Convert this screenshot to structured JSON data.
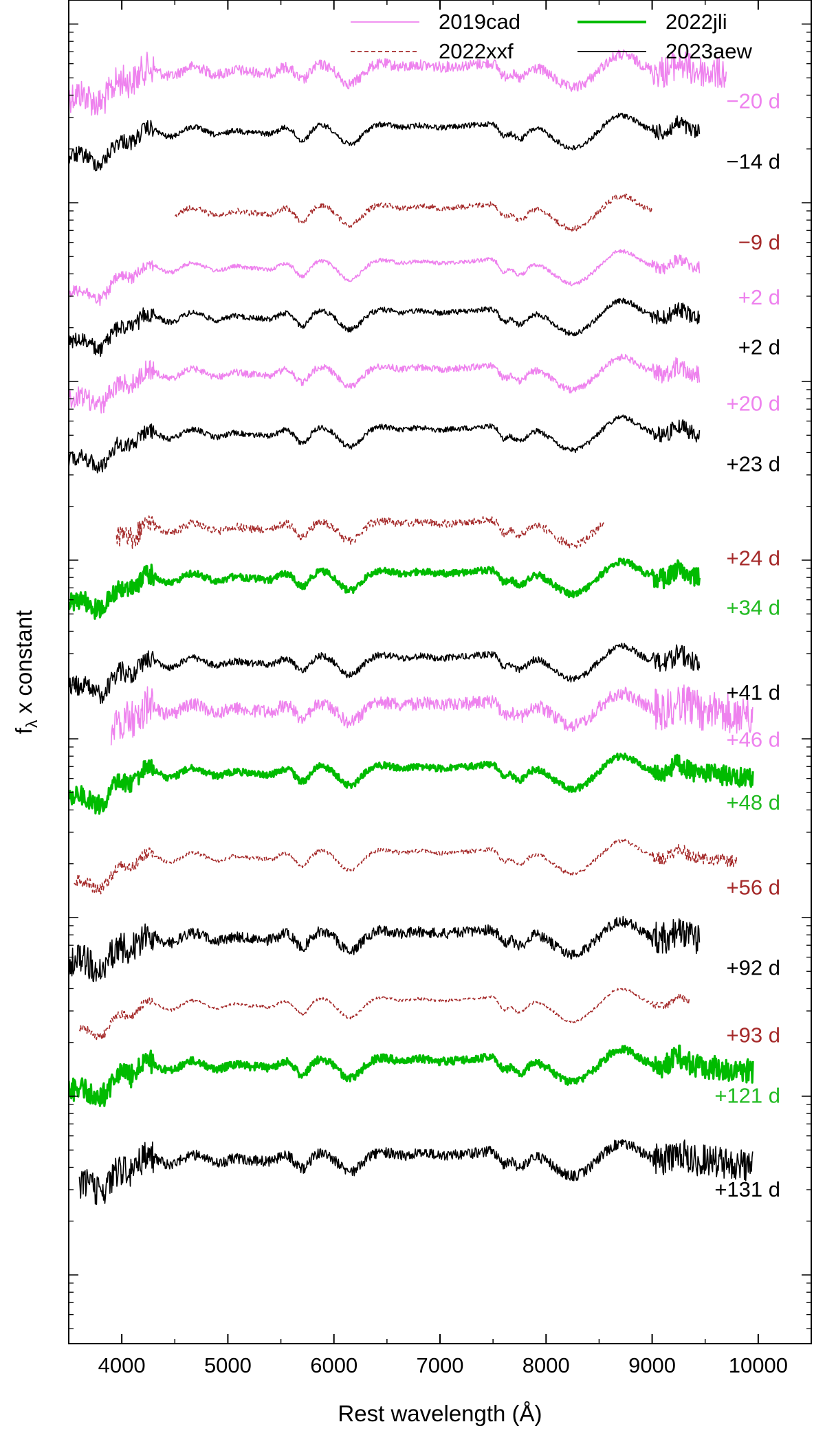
{
  "chart_data": {
    "type": "line",
    "title": "",
    "xlabel": "Rest wavelength (Å)",
    "ylabel_main": "f",
    "ylabel_sub": "λ",
    "ylabel_rest": " x constant",
    "xlim": [
      3500,
      10500
    ],
    "x_ticks": [
      4000,
      5000,
      6000,
      7000,
      8000,
      9000,
      10000
    ],
    "x_tick_labels": [
      "4000",
      "5000",
      "6000",
      "7000",
      "8000",
      "9000",
      "10000"
    ],
    "y_scale": "log (offset for clarity)",
    "legend_position": "top-right",
    "legend": [
      {
        "name": "2019cad",
        "color": "#ee82ee",
        "style": "solid"
      },
      {
        "name": "2022jli",
        "color": "#00bb00",
        "style": "solid-thick"
      },
      {
        "name": "2022xxf",
        "color": "#a52a2a",
        "style": "dashed"
      },
      {
        "name": "2023aew",
        "color": "#000000",
        "style": "solid"
      }
    ],
    "spectra": [
      {
        "sn": "2019cad",
        "epoch": "−20 d",
        "color": "#ee82ee",
        "style": "solid",
        "wmin": 3500,
        "wmax": 9700,
        "offset": 0.075,
        "noise": 0.008
      },
      {
        "sn": "2023aew",
        "epoch": "−14 d",
        "color": "#000000",
        "style": "solid",
        "wmin": 3500,
        "wmax": 9450,
        "offset": 0.12,
        "noise": 0.004
      },
      {
        "sn": "2022xxf",
        "epoch": "−9 d",
        "color": "#a52a2a",
        "style": "dashed",
        "wmin": 4500,
        "wmax": 9000,
        "offset": 0.18,
        "noise": 0.004
      },
      {
        "sn": "2019cad",
        "epoch": "+2 d",
        "color": "#ee82ee",
        "style": "solid",
        "wmin": 3500,
        "wmax": 9450,
        "offset": 0.221,
        "noise": 0.003
      },
      {
        "sn": "2023aew",
        "epoch": "+2 d",
        "color": "#000000",
        "style": "solid",
        "wmin": 3500,
        "wmax": 9450,
        "offset": 0.258,
        "noise": 0.004
      },
      {
        "sn": "2019cad",
        "epoch": "+20 d",
        "color": "#ee82ee",
        "style": "solid",
        "wmin": 3500,
        "wmax": 9450,
        "offset": 0.3,
        "noise": 0.005
      },
      {
        "sn": "2023aew",
        "epoch": "+23 d",
        "color": "#000000",
        "style": "solid",
        "wmin": 3500,
        "wmax": 9450,
        "offset": 0.345,
        "noise": 0.004
      },
      {
        "sn": "2022xxf",
        "epoch": "+24 d",
        "color": "#a52a2a",
        "style": "dashed",
        "wmin": 3950,
        "wmax": 8550,
        "offset": 0.415,
        "noise": 0.006
      },
      {
        "sn": "2022jli",
        "epoch": "+34 d",
        "color": "#00bb00",
        "style": "solid-thick",
        "wmin": 3500,
        "wmax": 9450,
        "offset": 0.452,
        "noise": 0.005
      },
      {
        "sn": "2023aew",
        "epoch": "+41 d",
        "color": "#000000",
        "style": "solid",
        "wmin": 3500,
        "wmax": 9450,
        "offset": 0.515,
        "noise": 0.005
      },
      {
        "sn": "2019cad",
        "epoch": "+46 d",
        "color": "#ee82ee",
        "style": "solid",
        "wmin": 3900,
        "wmax": 9950,
        "offset": 0.55,
        "noise": 0.01
      },
      {
        "sn": "2022jli",
        "epoch": "+48 d",
        "color": "#00bb00",
        "style": "solid-thick",
        "wmin": 3500,
        "wmax": 9950,
        "offset": 0.597,
        "noise": 0.005
      },
      {
        "sn": "2022xxf",
        "epoch": "+56 d",
        "color": "#a52a2a",
        "style": "dashed",
        "wmin": 3550,
        "wmax": 9800,
        "offset": 0.66,
        "noise": 0.003
      },
      {
        "sn": "2023aew",
        "epoch": "+92 d",
        "color": "#000000",
        "style": "solid",
        "wmin": 3500,
        "wmax": 9450,
        "offset": 0.72,
        "noise": 0.008
      },
      {
        "sn": "2022xxf",
        "epoch": "+93 d",
        "color": "#a52a2a",
        "style": "dashed",
        "wmin": 3600,
        "wmax": 9350,
        "offset": 0.77,
        "noise": 0.002
      },
      {
        "sn": "2022jli",
        "epoch": "+121 d",
        "color": "#00bb00",
        "style": "solid-thick",
        "wmin": 3500,
        "wmax": 9950,
        "offset": 0.815,
        "noise": 0.006
      },
      {
        "sn": "2023aew",
        "epoch": "+131 d",
        "color": "#000000",
        "style": "solid",
        "wmin": 3600,
        "wmax": 9950,
        "offset": 0.885,
        "noise": 0.008
      }
    ]
  }
}
